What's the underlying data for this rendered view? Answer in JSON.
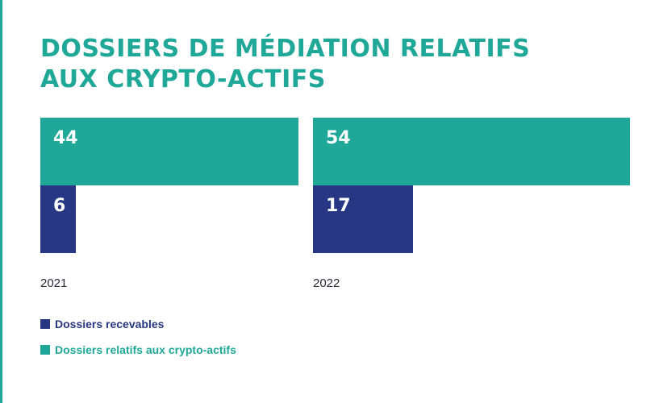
{
  "title_line1": "DOSSIERS DE MÉDIATION RELATIFS",
  "title_line2": "AUX CRYPTO-ACTIFS",
  "colors": {
    "crypto": "#1fa898",
    "recevables": "#283784"
  },
  "chart_data": {
    "type": "bar",
    "categories": [
      "2021",
      "2022"
    ],
    "series": [
      {
        "name": "Dossiers relatifs aux crypto-actifs",
        "values": [
          44,
          54
        ]
      },
      {
        "name": "Dossiers recevables",
        "values": [
          6,
          17
        ]
      }
    ],
    "legend": [
      {
        "label": "Dossiers recevables",
        "color": "#283784"
      },
      {
        "label": "Dossiers relatifs aux crypto-actifs",
        "color": "#1fa898"
      }
    ],
    "legend_position": "bottom-left"
  }
}
